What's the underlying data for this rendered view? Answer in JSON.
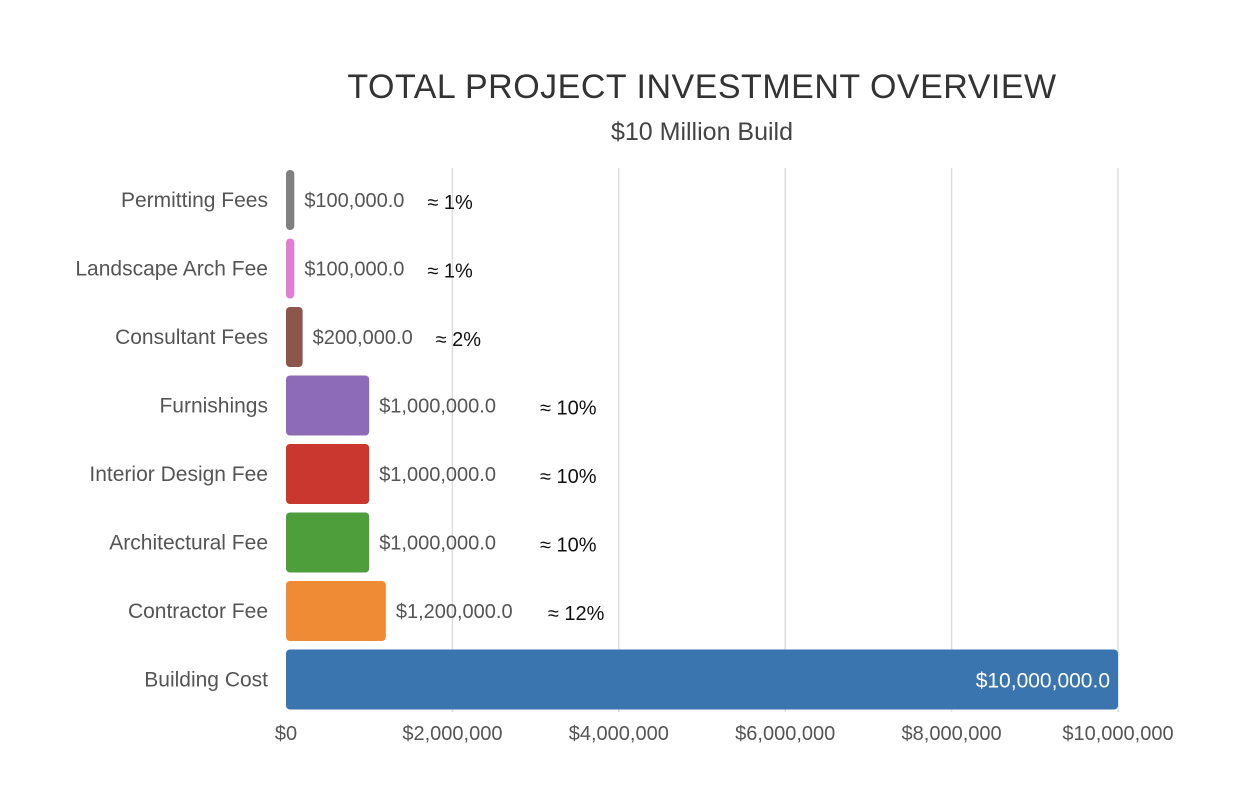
{
  "chart_data": {
    "type": "bar",
    "orientation": "horizontal",
    "title": "TOTAL PROJECT INVESTMENT OVERVIEW",
    "subtitle": "$10 Million Build",
    "categories": [
      "Permitting Fees",
      "Landscape Arch Fee",
      "Consultant Fees",
      "Furnishings",
      "Interior Design Fee",
      "Architectural Fee",
      "Contractor Fee",
      "Building Cost"
    ],
    "values": [
      100000,
      100000,
      200000,
      1000000,
      1000000,
      1000000,
      1200000,
      10000000
    ],
    "value_labels": [
      "$100,000.0",
      "$100,000.0",
      "$200,000.0",
      "$1,000,000.0",
      "$1,000,000.0",
      "$1,000,000.0",
      "$1,200,000.0",
      "$10,000,000.0"
    ],
    "percent_labels": [
      "≈ 1%",
      "≈ 1%",
      "≈ 2%",
      "≈ 10%",
      "≈ 10%",
      "≈ 10%",
      "≈ 12%",
      ""
    ],
    "colors": [
      "#808080",
      "#e07fd0",
      "#8c564b",
      "#8e6bb8",
      "#c9372f",
      "#4f9e3c",
      "#ef8a35",
      "#3a75b0"
    ],
    "xlim": [
      0,
      10000000
    ],
    "xticks": [
      0,
      2000000,
      4000000,
      6000000,
      8000000,
      10000000
    ],
    "xtick_labels": [
      "$0",
      "$2,000,000",
      "$4,000,000",
      "$6,000,000",
      "$8,000,000",
      "$10,000,000"
    ],
    "xlabel": "",
    "ylabel": "",
    "grid": true,
    "legend": "none"
  }
}
